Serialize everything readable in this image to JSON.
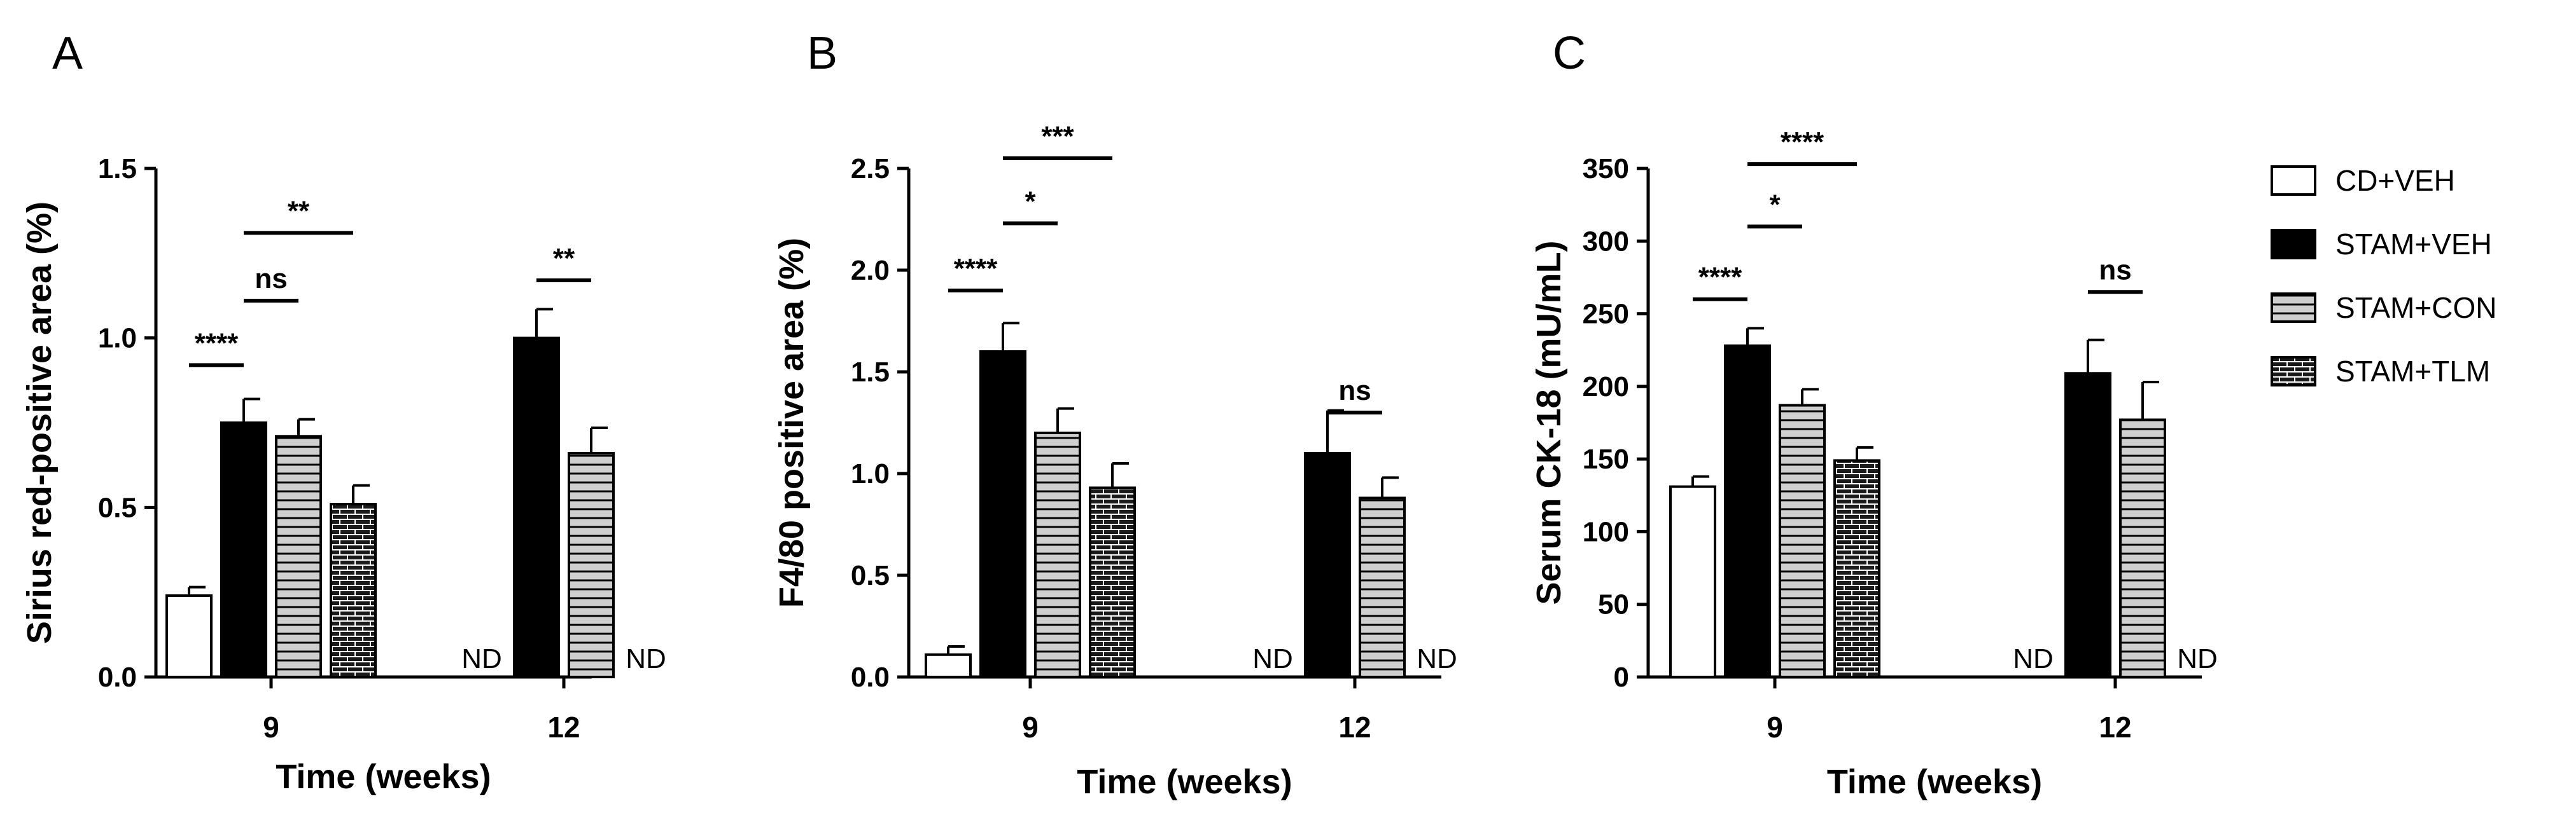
{
  "chart_data": [
    {
      "type": "bar",
      "panel": "A",
      "ylabel": "Sirius red-positive area (%)",
      "xlabel": "Time (weeks)",
      "ylim": [
        0,
        1.5
      ],
      "yticks": [
        0.0,
        0.5,
        1.0,
        1.5
      ],
      "ytick_labels": [
        "0.0",
        "0.5",
        "1.0",
        "1.5"
      ],
      "categories": [
        "9",
        "12"
      ],
      "series": [
        {
          "name": "CD+VEH",
          "values": [
            0.24,
            null
          ],
          "errors": [
            0.025,
            null
          ],
          "nd": [
            false,
            true
          ]
        },
        {
          "name": "STAM+VEH",
          "values": [
            0.75,
            1.0
          ],
          "errors": [
            0.07,
            0.085
          ],
          "nd": [
            false,
            false
          ]
        },
        {
          "name": "STAM+CON",
          "values": [
            0.71,
            0.66
          ],
          "errors": [
            0.05,
            0.075
          ],
          "nd": [
            false,
            false
          ]
        },
        {
          "name": "STAM+TLM",
          "values": [
            0.51,
            null
          ],
          "errors": [
            0.055,
            null
          ],
          "nd": [
            false,
            true
          ]
        }
      ],
      "nd_label": "ND",
      "significance": [
        {
          "label": "****",
          "group": "9",
          "from": "CD+VEH",
          "to": "STAM+VEH",
          "level": 0.92
        },
        {
          "label": "ns",
          "group": "9",
          "from": "STAM+VEH",
          "to": "STAM+CON",
          "level": 1.11
        },
        {
          "label": "**",
          "group": "9",
          "from": "STAM+VEH",
          "to": "STAM+TLM",
          "level": 1.31
        },
        {
          "label": "**",
          "group": "12",
          "from": "STAM+VEH",
          "to": "STAM+CON",
          "level": 1.17
        }
      ]
    },
    {
      "type": "bar",
      "panel": "B",
      "ylabel": "F4/80 positive area (%)",
      "xlabel": "Time (weeks)",
      "ylim": [
        0,
        2.5
      ],
      "yticks": [
        0.0,
        0.5,
        1.0,
        1.5,
        2.0,
        2.5
      ],
      "ytick_labels": [
        "0.0",
        "0.5",
        "1.0",
        "1.5",
        "2.0",
        "2.5"
      ],
      "categories": [
        "9",
        "12"
      ],
      "series": [
        {
          "name": "CD+VEH",
          "values": [
            0.11,
            null
          ],
          "errors": [
            0.04,
            null
          ],
          "nd": [
            false,
            true
          ]
        },
        {
          "name": "STAM+VEH",
          "values": [
            1.6,
            1.1
          ],
          "errors": [
            0.14,
            0.21
          ],
          "nd": [
            false,
            false
          ]
        },
        {
          "name": "STAM+CON",
          "values": [
            1.2,
            0.88
          ],
          "errors": [
            0.12,
            0.1
          ],
          "nd": [
            false,
            false
          ]
        },
        {
          "name": "STAM+TLM",
          "values": [
            0.93,
            null
          ],
          "errors": [
            0.12,
            null
          ],
          "nd": [
            false,
            true
          ]
        }
      ],
      "nd_label": "ND",
      "significance": [
        {
          "label": "****",
          "group": "9",
          "from": "CD+VEH",
          "to": "STAM+VEH",
          "level": 1.9
        },
        {
          "label": "*",
          "group": "9",
          "from": "STAM+VEH",
          "to": "STAM+CON",
          "level": 2.23
        },
        {
          "label": "***",
          "group": "9",
          "from": "STAM+VEH",
          "to": "STAM+TLM",
          "level": 2.55
        },
        {
          "label": "ns",
          "group": "12",
          "from": "STAM+VEH",
          "to": "STAM+CON",
          "level": 1.3
        }
      ]
    },
    {
      "type": "bar",
      "panel": "C",
      "ylabel": "Serum CK-18 (mU/mL)",
      "xlabel": "Time (weeks)",
      "ylim": [
        0,
        350
      ],
      "yticks": [
        0,
        50,
        100,
        150,
        200,
        250,
        300,
        350
      ],
      "ytick_labels": [
        "0",
        "50",
        "100",
        "150",
        "200",
        "250",
        "300",
        "350"
      ],
      "categories": [
        "9",
        "12"
      ],
      "series": [
        {
          "name": "CD+VEH",
          "values": [
            131,
            null
          ],
          "errors": [
            7,
            null
          ],
          "nd": [
            false,
            true
          ]
        },
        {
          "name": "STAM+VEH",
          "values": [
            228,
            209
          ],
          "errors": [
            12,
            23
          ],
          "nd": [
            false,
            false
          ]
        },
        {
          "name": "STAM+CON",
          "values": [
            187,
            177
          ],
          "errors": [
            11,
            26
          ],
          "nd": [
            false,
            false
          ]
        },
        {
          "name": "STAM+TLM",
          "values": [
            149,
            null
          ],
          "errors": [
            9,
            null
          ],
          "nd": [
            false,
            true
          ]
        }
      ],
      "nd_label": "ND",
      "significance": [
        {
          "label": "****",
          "group": "9",
          "from": "CD+VEH",
          "to": "STAM+VEH",
          "level": 260
        },
        {
          "label": "*",
          "group": "9",
          "from": "STAM+VEH",
          "to": "STAM+CON",
          "level": 310
        },
        {
          "label": "****",
          "group": "9",
          "from": "STAM+VEH",
          "to": "STAM+TLM",
          "level": 353
        },
        {
          "label": "ns",
          "group": "12",
          "from": "STAM+VEH",
          "to": "STAM+CON",
          "level": 265
        }
      ]
    }
  ],
  "legend": {
    "items": [
      {
        "name": "CD+VEH",
        "pattern": "white"
      },
      {
        "name": "STAM+VEH",
        "pattern": "black"
      },
      {
        "name": "STAM+CON",
        "pattern": "hstripes"
      },
      {
        "name": "STAM+TLM",
        "pattern": "brick"
      }
    ]
  },
  "colors": {
    "ink": "#000000",
    "stripe_fill": "#cfcfcf",
    "brick_fill": "#1a1a1a",
    "background": "#ffffff"
  }
}
